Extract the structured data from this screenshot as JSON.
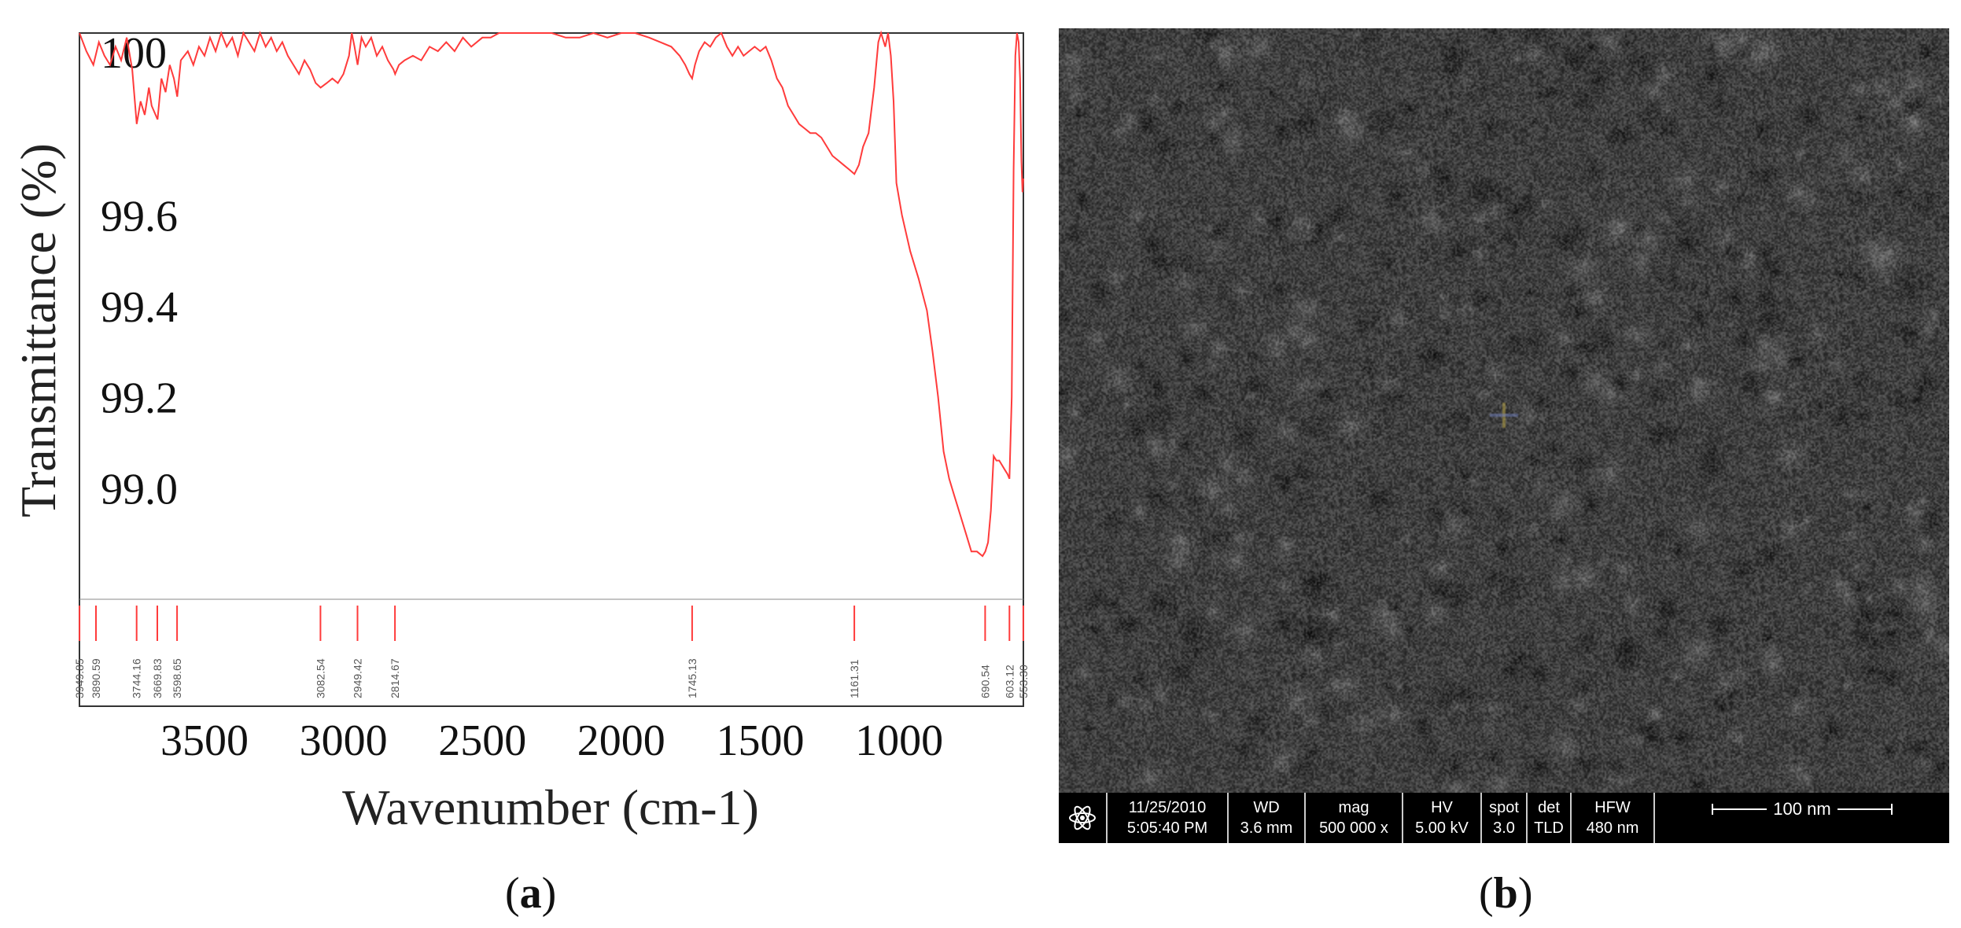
{
  "chart_data": {
    "type": "line",
    "title": "",
    "xlabel": "Wavenumber (cm-1)",
    "ylabel": "Transmittance (%)",
    "xlim": [
      3950,
      553
    ],
    "ylim": [
      98.8,
      100.0
    ],
    "x_ticks": [
      "3500",
      "3000",
      "2500",
      "2000",
      "1500",
      "1000"
    ],
    "y_ticks": [
      "100",
      "99.6",
      "99.4",
      "99.2",
      "99.0"
    ],
    "series": [
      {
        "color": "#ff3b3b",
        "points": [
          [
            3950,
            100.0
          ],
          [
            3925,
            99.96
          ],
          [
            3900,
            99.93
          ],
          [
            3880,
            99.98
          ],
          [
            3860,
            99.95
          ],
          [
            3840,
            99.93
          ],
          [
            3820,
            99.97
          ],
          [
            3800,
            99.94
          ],
          [
            3780,
            99.99
          ],
          [
            3760,
            99.92
          ],
          [
            3744,
            99.8
          ],
          [
            3730,
            99.85
          ],
          [
            3715,
            99.82
          ],
          [
            3700,
            99.88
          ],
          [
            3690,
            99.84
          ],
          [
            3669,
            99.81
          ],
          [
            3655,
            99.9
          ],
          [
            3640,
            99.87
          ],
          [
            3625,
            99.93
          ],
          [
            3610,
            99.9
          ],
          [
            3598,
            99.86
          ],
          [
            3585,
            99.94
          ],
          [
            3560,
            99.96
          ],
          [
            3540,
            99.93
          ],
          [
            3520,
            99.97
          ],
          [
            3500,
            99.95
          ],
          [
            3480,
            99.99
          ],
          [
            3460,
            99.96
          ],
          [
            3440,
            100.0
          ],
          [
            3420,
            99.97
          ],
          [
            3400,
            99.99
          ],
          [
            3380,
            99.95
          ],
          [
            3360,
            100.0
          ],
          [
            3340,
            99.98
          ],
          [
            3320,
            99.96
          ],
          [
            3300,
            100.0
          ],
          [
            3280,
            99.97
          ],
          [
            3260,
            99.99
          ],
          [
            3240,
            99.96
          ],
          [
            3220,
            99.98
          ],
          [
            3200,
            99.95
          ],
          [
            3180,
            99.93
          ],
          [
            3160,
            99.91
          ],
          [
            3140,
            99.94
          ],
          [
            3120,
            99.92
          ],
          [
            3100,
            99.89
          ],
          [
            3082,
            99.88
          ],
          [
            3060,
            99.89
          ],
          [
            3040,
            99.9
          ],
          [
            3020,
            99.89
          ],
          [
            3000,
            99.91
          ],
          [
            2980,
            99.95
          ],
          [
            2970,
            100.0
          ],
          [
            2960,
            99.97
          ],
          [
            2949,
            99.93
          ],
          [
            2935,
            99.99
          ],
          [
            2920,
            99.97
          ],
          [
            2900,
            99.99
          ],
          [
            2880,
            99.95
          ],
          [
            2860,
            99.97
          ],
          [
            2840,
            99.94
          ],
          [
            2820,
            99.92
          ],
          [
            2814,
            99.91
          ],
          [
            2800,
            99.93
          ],
          [
            2780,
            99.94
          ],
          [
            2750,
            99.95
          ],
          [
            2720,
            99.94
          ],
          [
            2690,
            99.97
          ],
          [
            2660,
            99.96
          ],
          [
            2630,
            99.98
          ],
          [
            2600,
            99.96
          ],
          [
            2570,
            99.99
          ],
          [
            2540,
            99.97
          ],
          [
            2500,
            99.99
          ],
          [
            2470,
            99.99
          ],
          [
            2440,
            100.0
          ],
          [
            2400,
            100.0
          ],
          [
            2350,
            100.0
          ],
          [
            2300,
            100.0
          ],
          [
            2250,
            100.0
          ],
          [
            2200,
            99.99
          ],
          [
            2150,
            99.99
          ],
          [
            2100,
            100.0
          ],
          [
            2050,
            99.99
          ],
          [
            2000,
            100.0
          ],
          [
            1950,
            100.0
          ],
          [
            1900,
            99.99
          ],
          [
            1860,
            99.98
          ],
          [
            1820,
            99.97
          ],
          [
            1790,
            99.95
          ],
          [
            1770,
            99.93
          ],
          [
            1755,
            99.91
          ],
          [
            1745,
            99.9
          ],
          [
            1735,
            99.93
          ],
          [
            1720,
            99.96
          ],
          [
            1700,
            99.98
          ],
          [
            1680,
            99.97
          ],
          [
            1660,
            99.99
          ],
          [
            1640,
            100.0
          ],
          [
            1620,
            99.97
          ],
          [
            1600,
            99.95
          ],
          [
            1580,
            99.97
          ],
          [
            1560,
            99.95
          ],
          [
            1540,
            99.96
          ],
          [
            1520,
            99.97
          ],
          [
            1500,
            99.96
          ],
          [
            1480,
            99.97
          ],
          [
            1460,
            99.94
          ],
          [
            1440,
            99.9
          ],
          [
            1420,
            99.88
          ],
          [
            1400,
            99.84
          ],
          [
            1380,
            99.82
          ],
          [
            1360,
            99.8
          ],
          [
            1340,
            99.79
          ],
          [
            1320,
            99.78
          ],
          [
            1300,
            99.78
          ],
          [
            1280,
            99.77
          ],
          [
            1260,
            99.75
          ],
          [
            1240,
            99.73
          ],
          [
            1220,
            99.72
          ],
          [
            1200,
            99.71
          ],
          [
            1180,
            99.7
          ],
          [
            1161,
            99.69
          ],
          [
            1145,
            99.71
          ],
          [
            1130,
            99.75
          ],
          [
            1110,
            99.78
          ],
          [
            1090,
            99.88
          ],
          [
            1075,
            99.98
          ],
          [
            1065,
            100.0
          ],
          [
            1050,
            99.97
          ],
          [
            1040,
            100.0
          ],
          [
            1030,
            99.95
          ],
          [
            1020,
            99.85
          ],
          [
            1010,
            99.67
          ],
          [
            990,
            99.6
          ],
          [
            960,
            99.52
          ],
          [
            930,
            99.46
          ],
          [
            900,
            99.39
          ],
          [
            880,
            99.3
          ],
          [
            860,
            99.2
          ],
          [
            840,
            99.08
          ],
          [
            820,
            99.02
          ],
          [
            800,
            98.98
          ],
          [
            780,
            98.94
          ],
          [
            760,
            98.9
          ],
          [
            740,
            98.86
          ],
          [
            720,
            98.86
          ],
          [
            700,
            98.85
          ],
          [
            690,
            98.86
          ],
          [
            680,
            98.88
          ],
          [
            670,
            98.95
          ],
          [
            660,
            99.07
          ],
          [
            650,
            99.06
          ],
          [
            640,
            99.06
          ],
          [
            630,
            99.05
          ],
          [
            620,
            99.04
          ],
          [
            610,
            99.03
          ],
          [
            603,
            99.02
          ],
          [
            595,
            99.2
          ],
          [
            588,
            99.7
          ],
          [
            582,
            99.95
          ],
          [
            576,
            100.0
          ],
          [
            570,
            99.98
          ],
          [
            565,
            99.9
          ],
          [
            560,
            99.72
          ],
          [
            556,
            99.65
          ],
          [
            553,
            99.68
          ]
        ]
      }
    ],
    "peaks": [
      "3949.85",
      "3890.59",
      "3744.16",
      "3669.83",
      "3598.65",
      "3082.54",
      "2949.42",
      "2814.67",
      "1745.13",
      "1161.31",
      "690.54",
      "603.12",
      "553.30"
    ],
    "peak_positions": [
      3949.85,
      3890.59,
      3744.16,
      3669.83,
      3598.65,
      3082.54,
      2949.42,
      2814.67,
      1745.13,
      1161.31,
      690.54,
      603.12,
      553.3
    ]
  },
  "panel_a_label": {
    "open": "(",
    "letter": "a",
    "close": ")"
  },
  "panel_b_label": {
    "open": "(",
    "letter": "b",
    "close": ")"
  },
  "sem": {
    "date": "11/25/2010",
    "time": "5:05:40 PM",
    "wd_label": "WD",
    "wd_value": "3.6 mm",
    "mag_label": "mag",
    "mag_value": "500 000 x",
    "hv_label": "HV",
    "hv_value": "5.00 kV",
    "spot_label": "spot",
    "spot_value": "3.0",
    "det_label": "det",
    "det_value": "TLD",
    "hfw_label": "HFW",
    "hfw_value": "480 nm",
    "scale_label": "100 nm"
  }
}
